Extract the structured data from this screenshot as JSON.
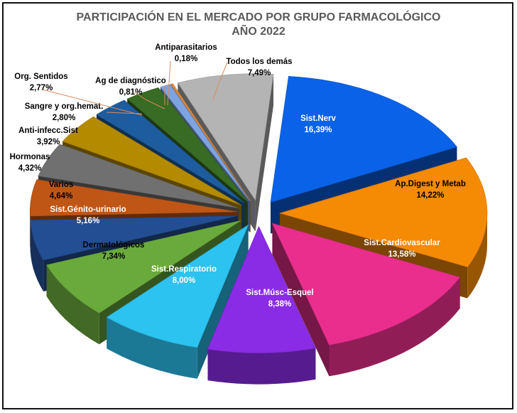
{
  "chart_data": {
    "type": "pie",
    "title": "PARTICIPACIÓN EN EL MERCADO POR GRUPO FARMACOLÓGICO",
    "subtitle": "AÑO 2022",
    "style": "3d-exploded",
    "slices": [
      {
        "label": "Sist.Nerv",
        "value": 16.39,
        "value_text": "16,39%",
        "color": "#0a62e8"
      },
      {
        "label": "Ap.Digest y Metab",
        "value": 14.22,
        "value_text": "14,22%",
        "color": "#f58a05"
      },
      {
        "label": "Sist.Cardiovascular",
        "value": 13.58,
        "value_text": "13,58%",
        "color": "#ea2e8d"
      },
      {
        "label": "Sist.Músc-Esquel",
        "value": 8.38,
        "value_text": "8,38%",
        "color": "#8a2be6"
      },
      {
        "label": "Sist.Respiratorio",
        "value": 8.0,
        "value_text": "8,00%",
        "color": "#2cc3f0"
      },
      {
        "label": "Dermatológicos",
        "value": 7.34,
        "value_text": "7,34%",
        "color": "#6aaa3c"
      },
      {
        "label": "Sist.Génito-urinario",
        "value": 5.16,
        "value_text": "5,16%",
        "color": "#234e93"
      },
      {
        "label": "Varios",
        "value": 4.64,
        "value_text": "4,64%",
        "color": "#bf5616"
      },
      {
        "label": "Hormonas",
        "value": 4.32,
        "value_text": "4,32%",
        "color": "#707070"
      },
      {
        "label": "Anti-infecc.Sist",
        "value": 3.92,
        "value_text": "3,92%",
        "color": "#b38a00"
      },
      {
        "label": "Sangre y org.hemat.",
        "value": 2.8,
        "value_text": "2,80%",
        "color": "#1d5c9e"
      },
      {
        "label": "Org. Sentidos",
        "value": 2.77,
        "value_text": "2,77%",
        "color": "#386b23"
      },
      {
        "label": "Ag de diagnóstico",
        "value": 0.81,
        "value_text": "0,81%",
        "color": "#7da3e0"
      },
      {
        "label": "Antiparasitarios",
        "value": 0.18,
        "value_text": "0,18%",
        "color": "#e08a3c"
      },
      {
        "label": "Todos los demás",
        "value": 7.49,
        "value_text": "7,49%",
        "color": "#b4b4b4"
      }
    ]
  }
}
